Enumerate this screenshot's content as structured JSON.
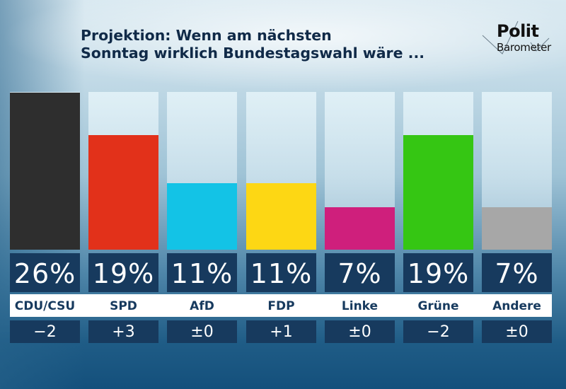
{
  "header": {
    "title_line1": "Projektion: Wenn am nächsten",
    "title_line2": "Sonntag wirklich Bundestagswahl wäre ...",
    "logo_line1": "Polit",
    "logo_line2": "Barometer"
  },
  "chart_data": {
    "type": "bar",
    "title": "Projektion: Wenn am nächsten Sonntag wirklich Bundestagswahl wäre ...",
    "xlabel": "",
    "ylabel": "",
    "ylim": [
      0,
      26
    ],
    "grid": false,
    "categories": [
      "CDU/CSU",
      "SPD",
      "AfD",
      "FDP",
      "Linke",
      "Grüne",
      "Andere"
    ],
    "values": [
      26,
      19,
      11,
      11,
      7,
      19,
      7
    ],
    "value_labels": [
      "26%",
      "19%",
      "11%",
      "11%",
      "7%",
      "19%",
      "7%"
    ],
    "changes": [
      "−2",
      "+3",
      "±0",
      "+1",
      "±0",
      "−2",
      "±0"
    ],
    "colors": [
      "#2e2e2e",
      "#e2311a",
      "#13c3e6",
      "#fdd714",
      "#cf1f7c",
      "#35c613",
      "#a7a7a7"
    ],
    "unit": "%"
  }
}
